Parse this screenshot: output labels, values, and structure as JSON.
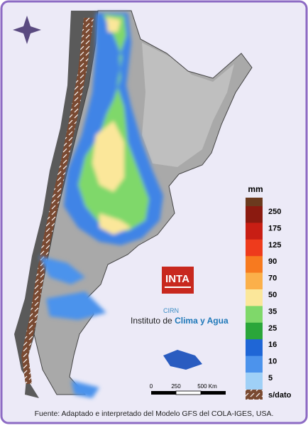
{
  "legend": {
    "unit": "mm",
    "items": [
      {
        "label": "250",
        "color": "#8b1a10"
      },
      {
        "label": "175",
        "color": "#c81e14"
      },
      {
        "label": "125",
        "color": "#ee3b1c"
      },
      {
        "label": "90",
        "color": "#f77a1f"
      },
      {
        "label": "70",
        "color": "#fbb04a"
      },
      {
        "label": "50",
        "color": "#fbe79a"
      },
      {
        "label": "35",
        "color": "#7fd86a"
      },
      {
        "label": "25",
        "color": "#2aa63a"
      },
      {
        "label": "16",
        "color": "#1f66d6"
      },
      {
        "label": "10",
        "color": "#4c93ec"
      },
      {
        "label": "5",
        "color": "#9fd0f7"
      }
    ],
    "nodata": "s/dato"
  },
  "scale": {
    "labels": [
      "0",
      "250",
      "500 Km"
    ]
  },
  "logo": {
    "name": "INTA",
    "sub": "CIRN",
    "institute": "Instituto de",
    "institute_bold": "Clima y Agua"
  },
  "source": "Fuente: Adaptado e interpretado del Modelo GFS del COLA-IGES, USA."
}
